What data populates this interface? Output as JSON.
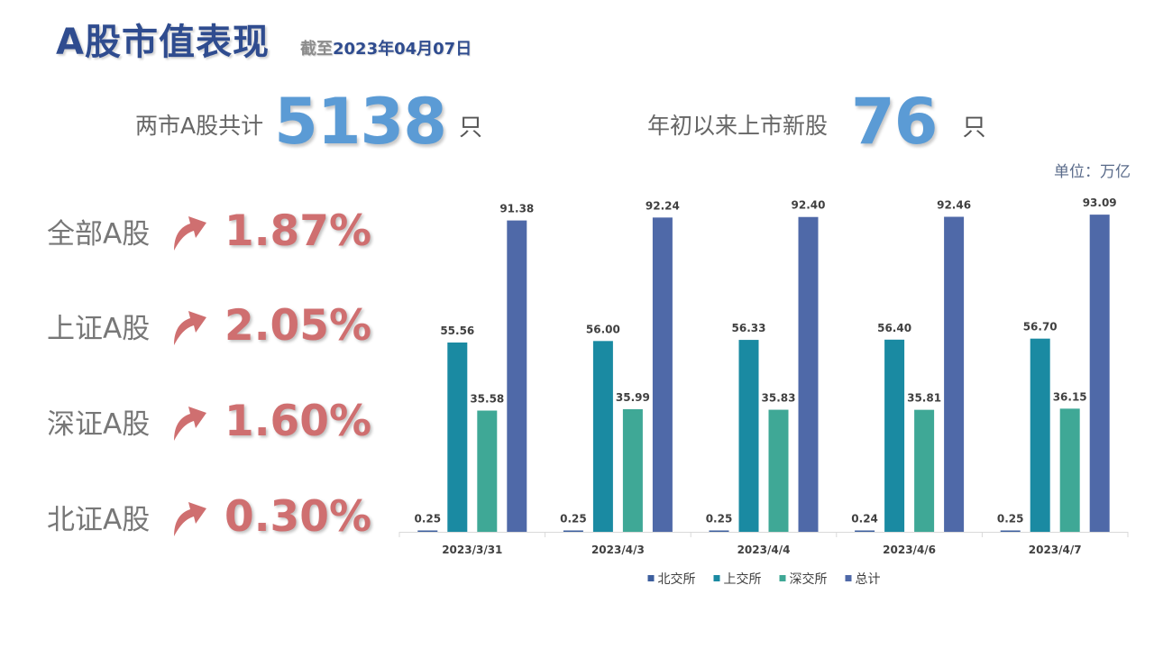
{
  "header": {
    "title": "A股市值表现",
    "date_prefix": "截至",
    "date_value": "2023年04月07日"
  },
  "stats": {
    "total_label": "两市A股共计",
    "total_value": "5138",
    "total_unit": "只",
    "new_label": "年初以来上市新股",
    "new_value": "76",
    "new_unit": "只"
  },
  "performance": [
    {
      "name": "全部A股",
      "value": "1.87%",
      "direction": "up"
    },
    {
      "name": "上证A股",
      "value": "2.05%",
      "direction": "up"
    },
    {
      "name": "深证A股",
      "value": "1.60%",
      "direction": "up"
    },
    {
      "name": "北证A股",
      "value": "0.30%",
      "direction": "up"
    }
  ],
  "colors": {
    "accent_blue": "#5b9bd5",
    "title_blue": "#2f4c8f",
    "up_red": "#cf6f70"
  },
  "chart_data": {
    "type": "bar",
    "unit_label": "单位：万亿",
    "categories": [
      "2023/3/31",
      "2023/4/3",
      "2023/4/4",
      "2023/4/6",
      "2023/4/7"
    ],
    "series": [
      {
        "name": "北交所",
        "color": "#3d5f9e",
        "values": [
          0.25,
          0.25,
          0.25,
          0.24,
          0.25
        ],
        "labels": [
          "0.25",
          "0.25",
          "0.25",
          "0.24",
          "0.25"
        ]
      },
      {
        "name": "上交所",
        "color": "#1a8aa2",
        "values": [
          55.56,
          56.0,
          56.33,
          56.4,
          56.7
        ],
        "labels": [
          "55.56",
          "56.00",
          "56.33",
          "56.40",
          "56.70"
        ]
      },
      {
        "name": "深交所",
        "color": "#3fa896",
        "values": [
          35.58,
          35.99,
          35.83,
          35.81,
          36.15
        ],
        "labels": [
          "35.58",
          "35.99",
          "35.83",
          "35.81",
          "36.15"
        ]
      },
      {
        "name": "总计",
        "color": "#4f69a8",
        "values": [
          91.38,
          92.24,
          92.4,
          92.46,
          93.09
        ],
        "labels": [
          "91.38",
          "92.24",
          "92.40",
          "92.46",
          "93.09"
        ]
      }
    ],
    "ylim": [
      0,
      100
    ],
    "grid": false,
    "legend": "bottom"
  }
}
